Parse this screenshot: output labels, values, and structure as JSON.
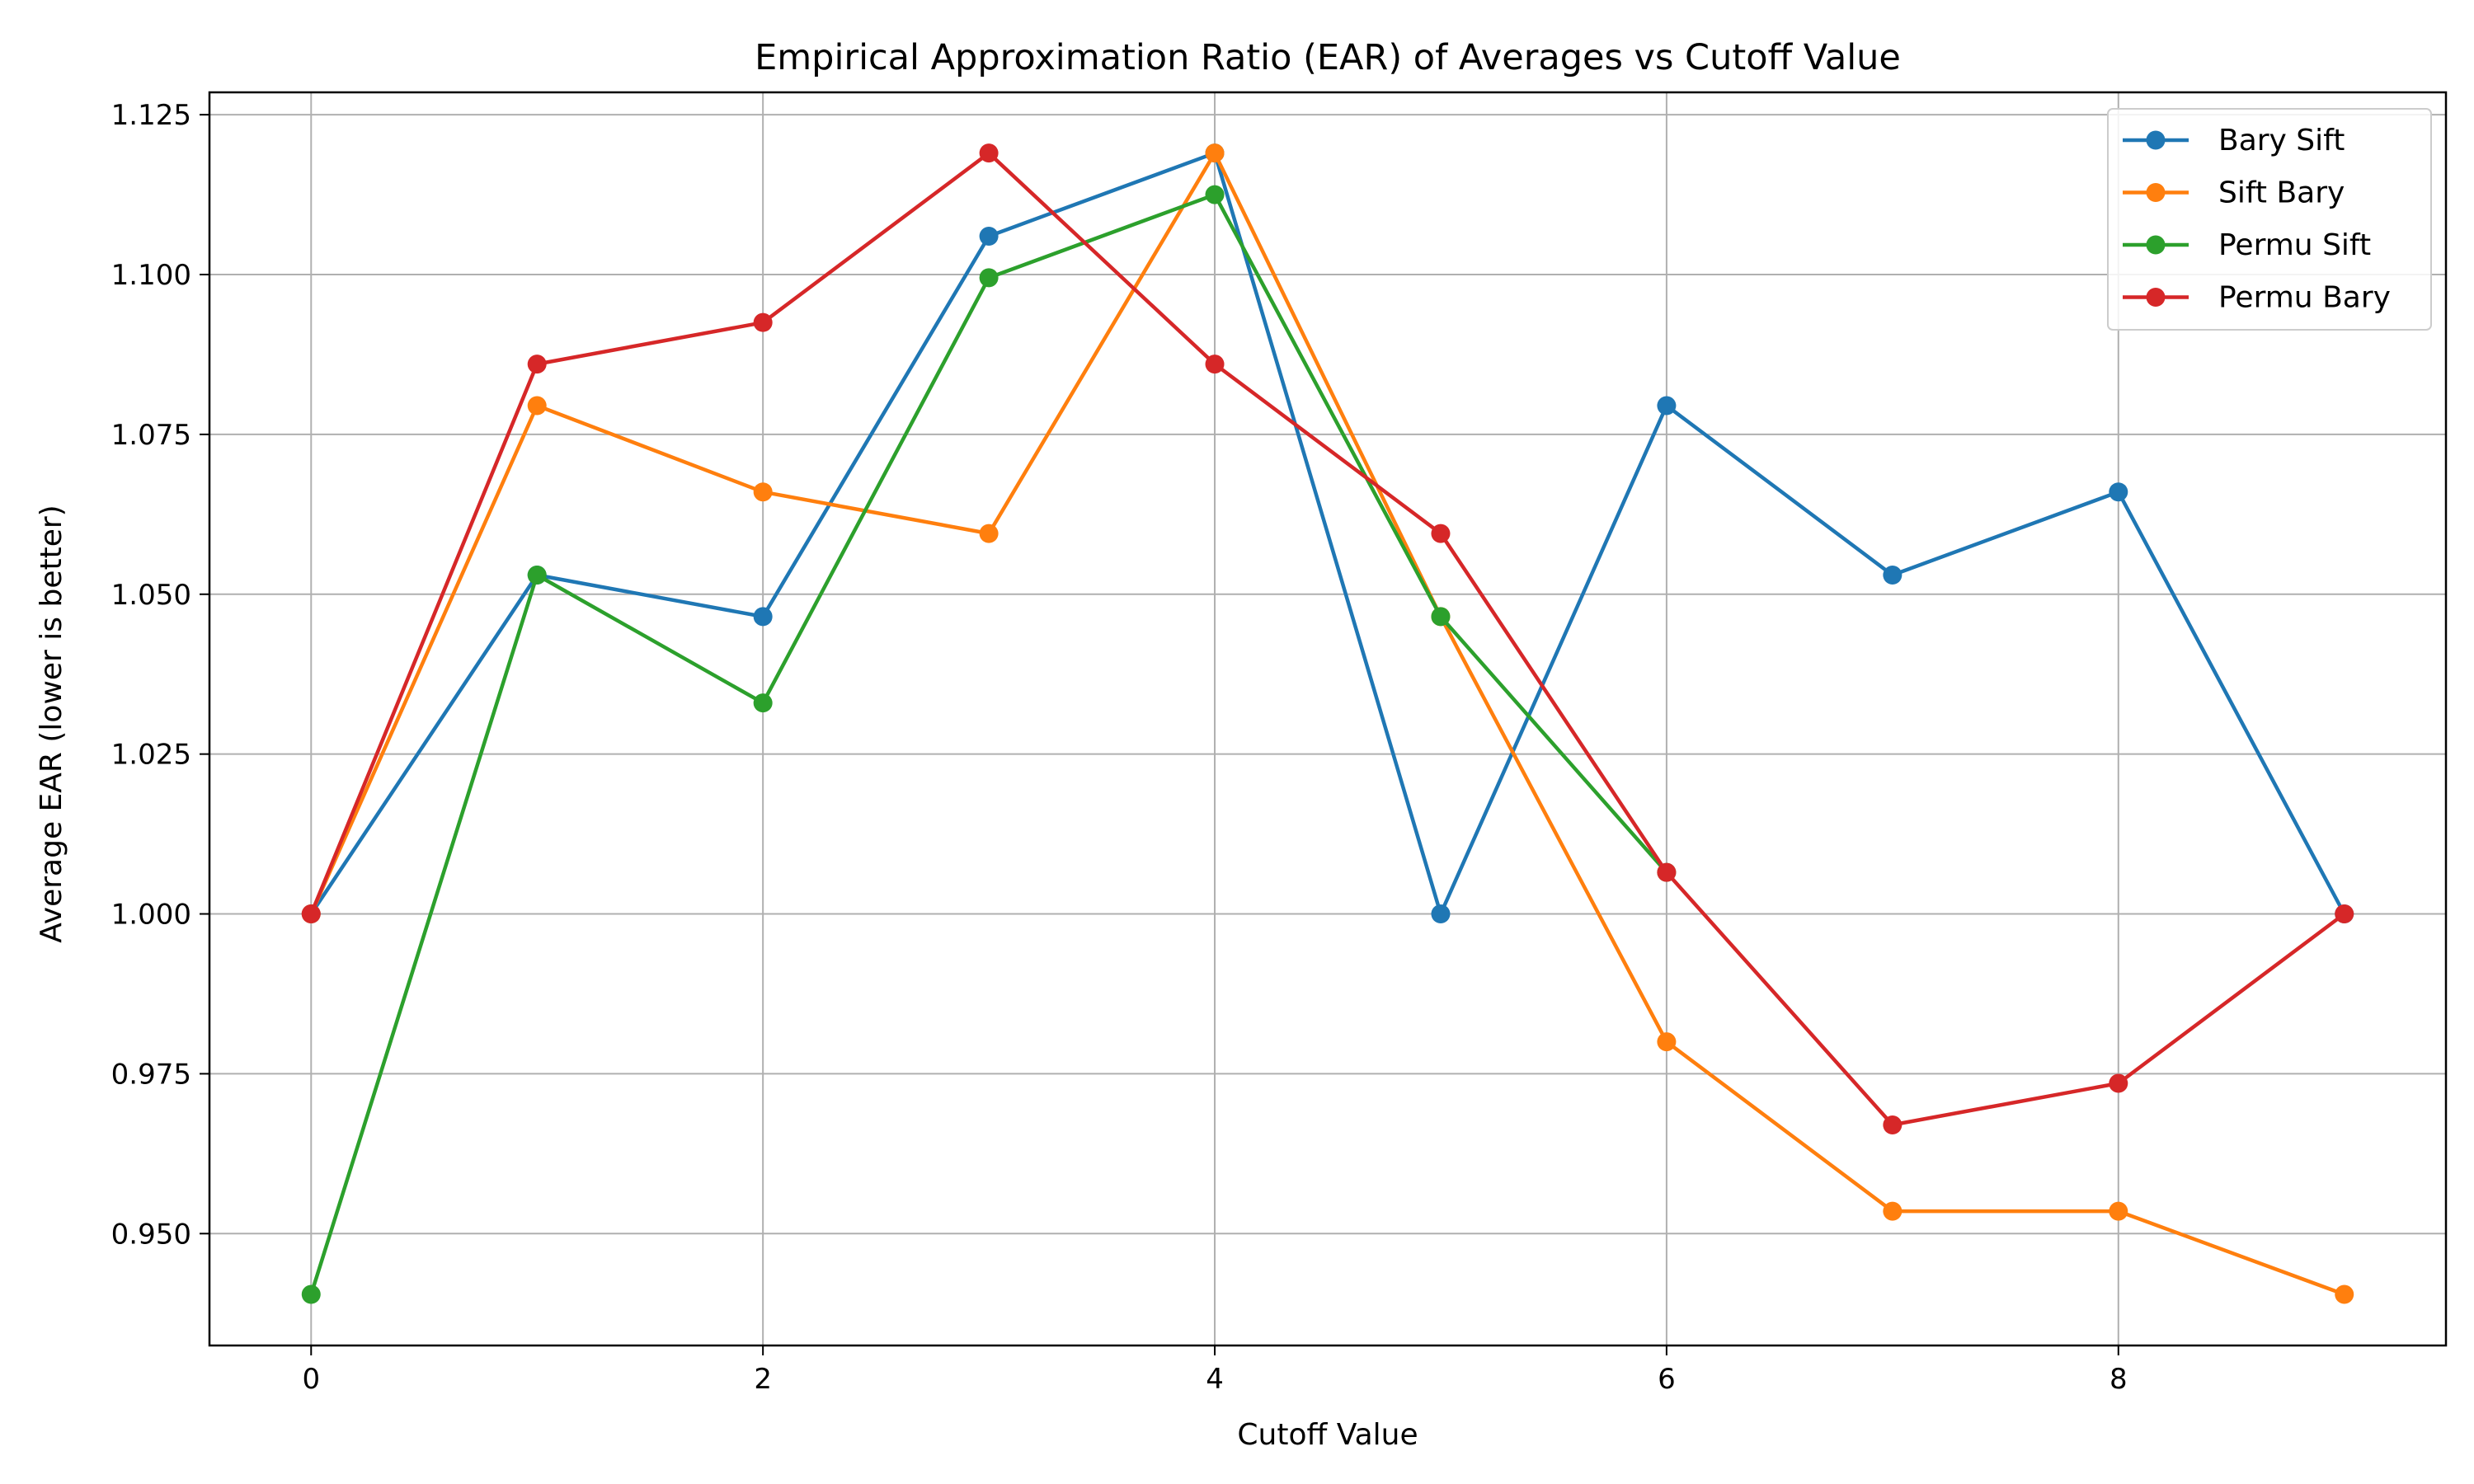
{
  "chart_data": {
    "type": "line",
    "title": "Empirical Approximation Ratio (EAR) of Averages vs Cutoff Value",
    "xlabel": "Cutoff Value",
    "ylabel": "Average EAR (lower is better)",
    "x": [
      0,
      1,
      2,
      3,
      4,
      5,
      6,
      7,
      8,
      9
    ],
    "xlim": [
      -0.45,
      9.45
    ],
    "ylim": [
      0.9325,
      1.1285
    ],
    "xticks": [
      0,
      2,
      4,
      6,
      8
    ],
    "xtick_labels": [
      "0",
      "2",
      "4",
      "6",
      "8"
    ],
    "yticks": [
      0.95,
      0.975,
      1.0,
      1.025,
      1.05,
      1.075,
      1.1,
      1.125
    ],
    "ytick_labels": [
      "0.950",
      "0.975",
      "1.000",
      "1.025",
      "1.050",
      "1.075",
      "1.100",
      "1.125"
    ],
    "grid": true,
    "legend_position": "top-right",
    "series": [
      {
        "name": "Bary Sift",
        "color": "#1f77b4",
        "marker": "circle",
        "values": [
          1.0,
          1.053,
          1.0465,
          1.106,
          1.119,
          1.0,
          1.0795,
          1.053,
          1.066,
          1.0
        ]
      },
      {
        "name": "Sift Bary",
        "color": "#ff7f0e",
        "marker": "circle",
        "values": [
          1.0,
          1.0795,
          1.066,
          1.0595,
          1.119,
          1.0465,
          0.98,
          0.9535,
          0.9535,
          0.9405
        ]
      },
      {
        "name": "Permu Sift",
        "color": "#2ca02c",
        "marker": "circle",
        "values": [
          0.9405,
          1.053,
          1.033,
          1.0995,
          1.1125,
          1.0465,
          1.0065,
          null,
          null,
          null
        ]
      },
      {
        "name": "Permu Bary",
        "color": "#d62728",
        "marker": "circle",
        "values": [
          1.0,
          1.086,
          1.0925,
          1.119,
          1.086,
          1.0595,
          1.0065,
          0.967,
          0.9735,
          1.0
        ]
      }
    ]
  }
}
